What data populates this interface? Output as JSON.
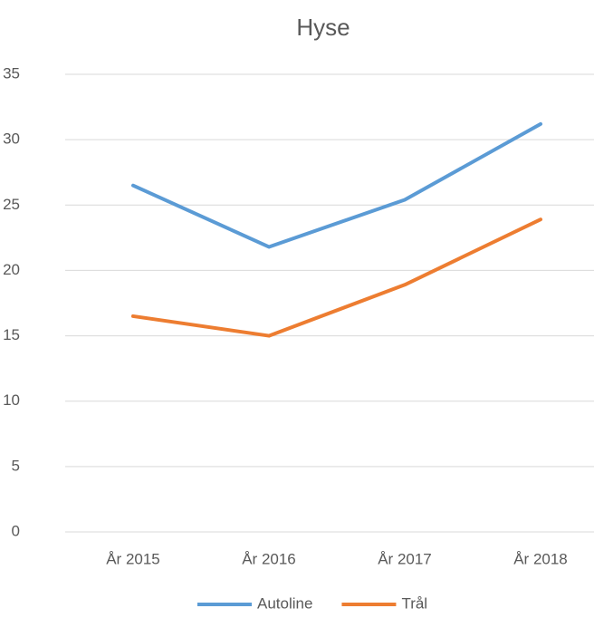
{
  "chart_data": {
    "type": "line",
    "title": "Hyse",
    "categories": [
      "År 2015",
      "År 2016",
      "År 2017",
      "År 2018"
    ],
    "series": [
      {
        "name": "Autoline",
        "color": "#5b9bd5",
        "values": [
          26.5,
          21.8,
          25.4,
          31.2
        ]
      },
      {
        "name": "Trål",
        "color": "#ed7d31",
        "values": [
          16.5,
          15.0,
          18.9,
          23.9
        ]
      }
    ],
    "ylim": [
      0,
      35
    ],
    "yticks": [
      0,
      5,
      10,
      15,
      20,
      25,
      30,
      35
    ],
    "grid": true,
    "legend": "bottom"
  }
}
